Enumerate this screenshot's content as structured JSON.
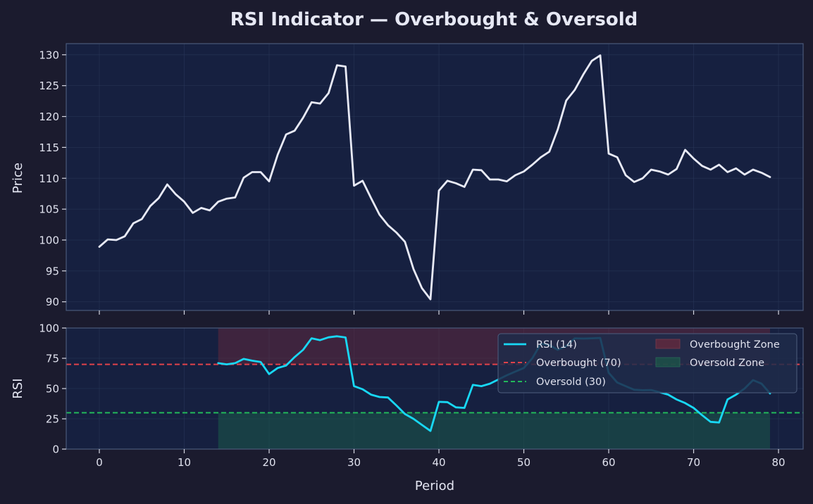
{
  "title": "RSI Indicator — Overbought & Oversold",
  "colors": {
    "background": "#1b1b2e",
    "panel": "#162040",
    "price_line": "#e8eaf6",
    "rsi_line": "#18d8f5",
    "overbought": "#e0424a",
    "oversold": "#22b85a",
    "overbought_zone": "#6e2a3c",
    "oversold_zone": "#1b5a48"
  },
  "chart_data": [
    {
      "type": "line",
      "panel": "price",
      "ylabel": "Price",
      "xlabel": "",
      "xlim": [
        -3.9,
        82.9
      ],
      "ylim": [
        88.6,
        131.8
      ],
      "yticks": [
        90,
        95,
        100,
        105,
        110,
        115,
        120,
        125,
        130
      ],
      "grid": true,
      "series": [
        {
          "x": [
            0,
            1,
            2,
            3,
            4,
            5,
            6,
            7,
            8,
            9,
            10,
            11,
            12,
            13,
            14,
            15,
            16,
            17,
            18,
            19,
            20,
            21,
            22,
            23,
            24,
            25,
            26,
            27,
            28,
            29,
            30,
            31,
            32,
            33,
            34,
            35,
            36,
            37,
            38,
            39,
            40,
            41,
            42,
            43,
            44,
            45,
            46,
            47,
            48,
            49,
            50,
            51,
            52,
            53,
            54,
            55,
            56,
            57,
            58,
            59,
            60,
            61,
            62,
            63,
            64,
            65,
            66,
            67,
            68,
            69,
            70,
            71,
            72,
            73,
            74,
            75,
            76,
            77,
            78,
            79
          ],
          "values": [
            98.9,
            100.1,
            100.0,
            100.6,
            102.7,
            103.4,
            105.5,
            106.8,
            109.0,
            107.4,
            106.2,
            104.4,
            105.2,
            104.8,
            106.2,
            106.7,
            106.9,
            110.1,
            111.0,
            111.0,
            109.5,
            113.8,
            117.1,
            117.7,
            119.8,
            122.3,
            122.1,
            123.8,
            128.3,
            128.1,
            108.8,
            109.6,
            106.8,
            104.1,
            102.4,
            101.2,
            99.7,
            95.3,
            92.2,
            90.4,
            108.0,
            109.6,
            109.2,
            108.6,
            111.4,
            111.3,
            109.8,
            109.8,
            109.5,
            110.5,
            111.1,
            112.2,
            113.4,
            114.3,
            117.9,
            122.6,
            124.3,
            126.8,
            129.0,
            129.9,
            114.0,
            113.4,
            110.5,
            109.4,
            110.0,
            111.4,
            111.1,
            110.6,
            111.5,
            114.6,
            113.2,
            112.0,
            111.4,
            112.2,
            111.0,
            111.6,
            110.6,
            111.4,
            110.9,
            110.2
          ]
        }
      ]
    },
    {
      "type": "line",
      "panel": "rsi",
      "ylabel": "RSI",
      "xlabel": "Period",
      "xlim": [
        -3.9,
        82.9
      ],
      "ylim": [
        0,
        100
      ],
      "yticks": [
        0,
        25,
        50,
        75,
        100
      ],
      "xticks": [
        0,
        10,
        20,
        30,
        40,
        50,
        60,
        70,
        80
      ],
      "grid": true,
      "legend_position": "top-right",
      "zone_x": [
        14,
        79
      ],
      "series": [
        {
          "name": "RSI (14)",
          "x": [
            14,
            15,
            16,
            17,
            18,
            19,
            20,
            21,
            22,
            23,
            24,
            25,
            26,
            27,
            28,
            29,
            30,
            31,
            32,
            33,
            34,
            35,
            36,
            37,
            38,
            39,
            40,
            41,
            42,
            43,
            44,
            45,
            46,
            47,
            48,
            49,
            50,
            51,
            52,
            53,
            54,
            55,
            56,
            57,
            58,
            59,
            60,
            61,
            62,
            63,
            64,
            65,
            66,
            67,
            68,
            69,
            70,
            71,
            72,
            73,
            74,
            75,
            76,
            77,
            78,
            79
          ],
          "values": [
            71,
            70,
            71,
            74.5,
            73,
            72,
            62,
            67,
            69,
            76,
            82,
            91.5,
            90,
            92.3,
            93.2,
            92.2,
            52,
            49.5,
            45,
            43,
            42.6,
            36,
            29,
            25,
            20,
            15,
            39,
            38.8,
            34.5,
            34,
            53,
            52,
            54,
            57.5,
            61,
            64,
            67,
            75,
            87,
            86,
            82,
            85,
            91.5,
            91.3,
            91.5,
            91.8,
            63,
            55,
            52,
            49,
            48.6,
            48.8,
            47,
            45,
            41,
            38,
            34,
            28,
            22.5,
            22,
            41,
            45,
            50,
            57,
            54,
            46
          ]
        },
        {
          "name": "Overbought (70)",
          "constant": 70
        },
        {
          "name": "Oversold (30)",
          "constant": 30
        },
        {
          "name": "Overbought Zone",
          "range": [
            70,
            100
          ]
        },
        {
          "name": "Oversold Zone",
          "range": [
            0,
            30
          ]
        }
      ]
    }
  ]
}
